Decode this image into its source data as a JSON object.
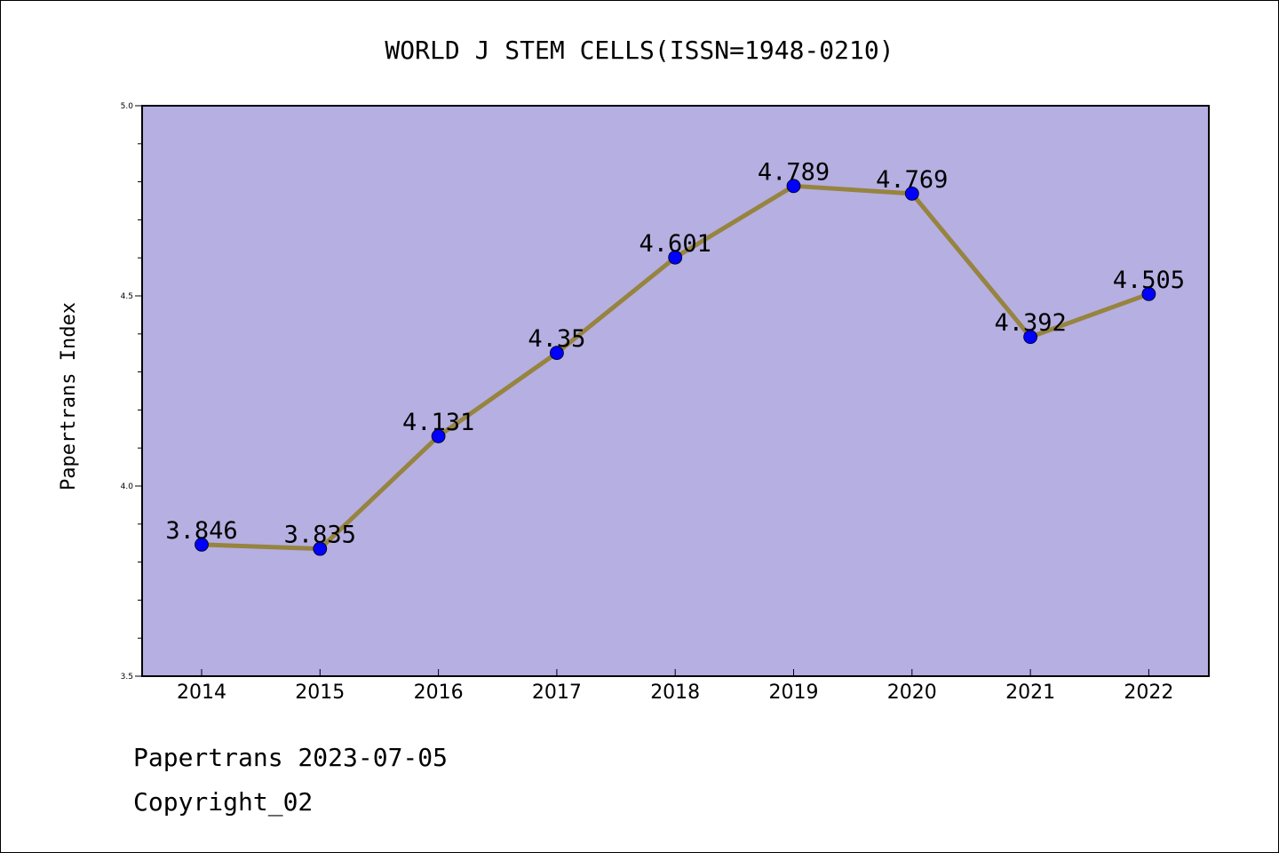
{
  "chart_data": {
    "type": "line",
    "title": "WORLD J STEM CELLS(ISSN=1948-0210)",
    "xlabel": "",
    "ylabel": "Papertrans Index",
    "categories": [
      "2014",
      "2015",
      "2016",
      "2017",
      "2018",
      "2019",
      "2020",
      "2021",
      "2022"
    ],
    "series": [
      {
        "values": [
          3.846,
          3.835,
          4.131,
          4.35,
          4.601,
          4.789,
          4.769,
          4.392,
          4.505
        ],
        "labels": [
          "3.846",
          "3.835",
          "4.131",
          "4.35",
          "4.601",
          "4.789",
          "4.769",
          "4.392",
          "4.505"
        ]
      }
    ],
    "ylim": [
      3.5,
      5.0
    ],
    "yticks": [
      "3.5",
      "4.0",
      "4.5",
      "5.0"
    ],
    "grid": false,
    "colors": {
      "plot_background": "#b5afe2",
      "line": "#96843f",
      "marker": "#0000ff"
    }
  },
  "footer": {
    "date_line": "Papertrans 2023-07-05",
    "copyright": "Copyright_02"
  }
}
